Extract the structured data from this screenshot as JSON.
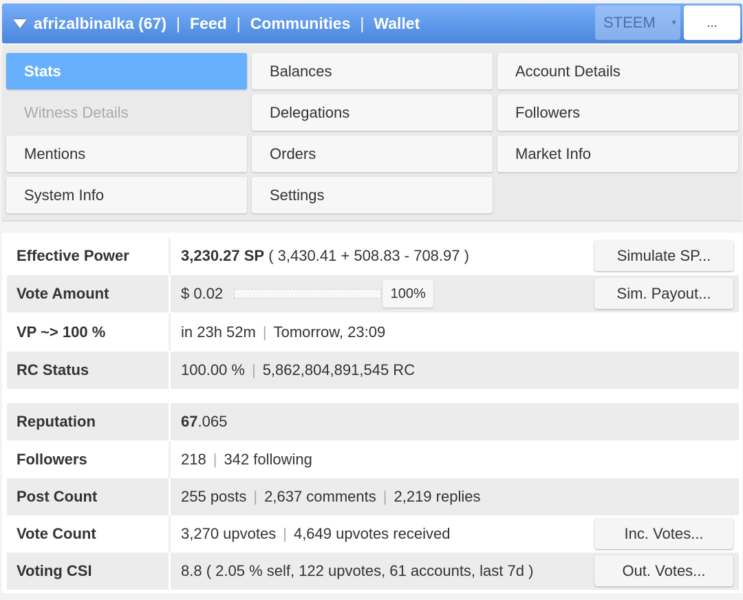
{
  "nav": {
    "user": "afrizalbinalka (67)",
    "links": [
      "Feed",
      "Communities",
      "Wallet"
    ],
    "chain": "STEEM",
    "more": "..."
  },
  "menu": [
    "Stats",
    "Balances",
    "Account Details",
    "Witness Details",
    "Delegations",
    "Followers",
    "Mentions",
    "Orders",
    "Market Info",
    "System Info",
    "Settings"
  ],
  "stats": {
    "effective_power": {
      "label": "Effective Power",
      "main": "3,230.27 SP",
      "detail": " ( 3,430.41 + 508.83 - 708.97 )",
      "button": "Simulate SP..."
    },
    "vote_amount": {
      "label": "Vote Amount",
      "value": "$ 0.02",
      "slider_percent": "100%",
      "button": "Sim. Payout..."
    },
    "vp": {
      "label": "VP ~> 100 %",
      "a": "in 23h 52m",
      "b": "Tomorrow, 23:09"
    },
    "rc": {
      "label": "RC Status",
      "a": "100.00 %",
      "b": "5,862,804,891,545 RC"
    },
    "reputation": {
      "label": "Reputation",
      "int": "67",
      "dec": ".065"
    },
    "followers": {
      "label": "Followers",
      "a": "218",
      "b": "342 following"
    },
    "posts": {
      "label": "Post Count",
      "a": "255 posts",
      "b": "2,637 comments",
      "c": "2,219 replies"
    },
    "votes": {
      "label": "Vote Count",
      "a": "3,270 upvotes",
      "b": "4,649 upvotes received",
      "button": "Inc. Votes..."
    },
    "csi": {
      "label": "Voting CSI",
      "value": "8.8 ( 2.05 % self, 122 upvotes, 61 accounts, last 7d )",
      "button": "Out. Votes..."
    }
  }
}
